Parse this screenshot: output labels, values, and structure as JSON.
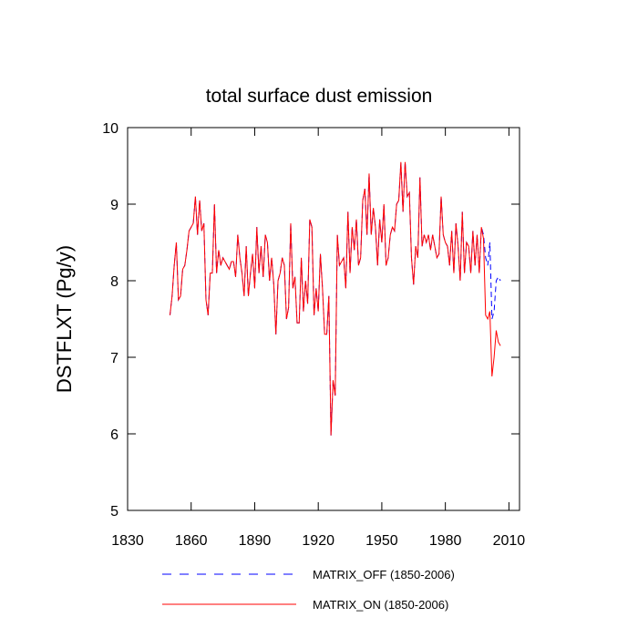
{
  "chart_data": {
    "type": "line",
    "title": "total surface dust emission",
    "y_label": "DSTFLXT  (Pg/y)",
    "x": [
      1850,
      1851,
      1852,
      1853,
      1854,
      1855,
      1856,
      1857,
      1858,
      1859,
      1860,
      1861,
      1862,
      1863,
      1864,
      1865,
      1866,
      1867,
      1868,
      1869,
      1870,
      1871,
      1872,
      1873,
      1874,
      1875,
      1876,
      1877,
      1878,
      1879,
      1880,
      1881,
      1882,
      1883,
      1884,
      1885,
      1886,
      1887,
      1888,
      1889,
      1890,
      1891,
      1892,
      1893,
      1894,
      1895,
      1896,
      1897,
      1898,
      1899,
      1900,
      1901,
      1902,
      1903,
      1904,
      1905,
      1906,
      1907,
      1908,
      1909,
      1910,
      1911,
      1912,
      1913,
      1914,
      1915,
      1916,
      1917,
      1918,
      1919,
      1920,
      1921,
      1922,
      1923,
      1924,
      1925,
      1926,
      1927,
      1928,
      1929,
      1930,
      1931,
      1932,
      1933,
      1934,
      1935,
      1936,
      1937,
      1938,
      1939,
      1940,
      1941,
      1942,
      1943,
      1944,
      1945,
      1946,
      1947,
      1948,
      1949,
      1950,
      1951,
      1952,
      1953,
      1954,
      1955,
      1956,
      1957,
      1958,
      1959,
      1960,
      1961,
      1962,
      1963,
      1964,
      1965,
      1966,
      1967,
      1968,
      1969,
      1970,
      1971,
      1972,
      1973,
      1974,
      1975,
      1976,
      1977,
      1978,
      1979,
      1980,
      1981,
      1982,
      1983,
      1984,
      1985,
      1986,
      1987,
      1988,
      1989,
      1990,
      1991,
      1992,
      1993,
      1994,
      1995,
      1996,
      1997,
      1998,
      1999,
      2000,
      2001,
      2002,
      2003,
      2004,
      2005,
      2006
    ],
    "series": [
      {
        "name": "MATRIX_OFF (1850-2006)",
        "color": "#0000ff",
        "dash": true,
        "values": [
          7.55,
          7.8,
          8.2,
          8.5,
          7.75,
          7.8,
          8.15,
          8.2,
          8.4,
          8.65,
          8.7,
          8.75,
          9.1,
          8.6,
          9.05,
          8.65,
          8.75,
          7.75,
          7.55,
          8.1,
          8.1,
          9.0,
          8.1,
          8.4,
          8.2,
          8.3,
          8.25,
          8.2,
          8.15,
          8.25,
          8.25,
          8.05,
          8.6,
          8.3,
          8.1,
          7.8,
          8.45,
          7.8,
          8.1,
          8.35,
          7.9,
          8.7,
          8.1,
          8.45,
          8.05,
          8.6,
          8.5,
          8.0,
          8.3,
          7.95,
          7.3,
          8.0,
          8.1,
          8.3,
          8.2,
          7.5,
          7.65,
          8.75,
          7.9,
          8.05,
          7.45,
          7.45,
          8.3,
          7.6,
          8.0,
          7.7,
          8.8,
          8.7,
          7.55,
          7.9,
          7.6,
          8.35,
          7.9,
          7.3,
          7.3,
          7.8,
          5.98,
          6.7,
          6.5,
          8.6,
          8.2,
          8.25,
          8.3,
          7.9,
          8.9,
          8.1,
          8.7,
          8.4,
          8.8,
          8.2,
          8.3,
          9.05,
          9.2,
          8.6,
          9.4,
          8.6,
          8.95,
          8.7,
          8.2,
          8.8,
          8.5,
          9.0,
          8.2,
          8.3,
          8.6,
          8.7,
          8.65,
          9.0,
          9.05,
          9.55,
          8.9,
          9.55,
          9.1,
          9.15,
          8.3,
          7.95,
          8.45,
          8.3,
          9.35,
          8.45,
          8.6,
          8.5,
          8.6,
          8.4,
          8.6,
          8.45,
          8.3,
          8.35,
          9.1,
          8.6,
          8.5,
          8.45,
          8.2,
          8.65,
          8.1,
          8.75,
          8.45,
          8.0,
          8.9,
          8.1,
          8.5,
          8.45,
          8.1,
          8.65,
          8.2,
          8.6,
          8.1,
          8.7,
          8.6,
          8.3,
          8.2,
          8.5,
          7.5,
          7.6,
          8.0,
          8.05,
          8.0
        ]
      },
      {
        "name": "MATRIX_ON (1850-2006)",
        "color": "#ff0000",
        "dash": false,
        "values": [
          7.55,
          7.8,
          8.2,
          8.5,
          7.75,
          7.8,
          8.15,
          8.2,
          8.4,
          8.65,
          8.7,
          8.75,
          9.1,
          8.6,
          9.05,
          8.65,
          8.75,
          7.75,
          7.55,
          8.1,
          8.1,
          9.0,
          8.1,
          8.4,
          8.2,
          8.3,
          8.25,
          8.2,
          8.15,
          8.25,
          8.25,
          8.05,
          8.6,
          8.3,
          8.1,
          7.8,
          8.45,
          7.8,
          8.1,
          8.35,
          7.9,
          8.7,
          8.1,
          8.45,
          8.05,
          8.6,
          8.5,
          8.0,
          8.3,
          7.95,
          7.3,
          8.0,
          8.1,
          8.3,
          8.2,
          7.5,
          7.65,
          8.75,
          7.9,
          8.05,
          7.45,
          7.45,
          8.3,
          7.6,
          8.0,
          7.7,
          8.8,
          8.7,
          7.55,
          7.9,
          7.6,
          8.35,
          7.9,
          7.3,
          7.3,
          7.8,
          5.98,
          6.7,
          6.5,
          8.6,
          8.2,
          8.25,
          8.3,
          7.9,
          8.9,
          8.1,
          8.7,
          8.4,
          8.8,
          8.2,
          8.3,
          9.05,
          9.2,
          8.6,
          9.4,
          8.6,
          8.95,
          8.7,
          8.2,
          8.8,
          8.5,
          9.0,
          8.2,
          8.3,
          8.6,
          8.7,
          8.65,
          9.0,
          9.05,
          9.55,
          8.9,
          9.55,
          9.1,
          9.15,
          8.3,
          7.95,
          8.45,
          8.3,
          9.35,
          8.45,
          8.6,
          8.5,
          8.6,
          8.4,
          8.6,
          8.45,
          8.3,
          8.35,
          9.1,
          8.6,
          8.5,
          8.45,
          8.2,
          8.65,
          8.1,
          8.75,
          8.45,
          8.0,
          8.9,
          8.1,
          8.5,
          8.45,
          8.1,
          8.65,
          8.2,
          8.6,
          8.1,
          8.7,
          8.55,
          7.55,
          7.5,
          7.6,
          6.75,
          7.0,
          7.35,
          7.2,
          7.15
        ]
      }
    ],
    "xlim": [
      1830,
      2015
    ],
    "xticks": [
      1830,
      1860,
      1890,
      1920,
      1950,
      1980,
      2010
    ],
    "ylim": [
      5,
      10
    ],
    "yticks": [
      5,
      6,
      7,
      8,
      9,
      10
    ],
    "legend": "bottom",
    "grid": false
  }
}
